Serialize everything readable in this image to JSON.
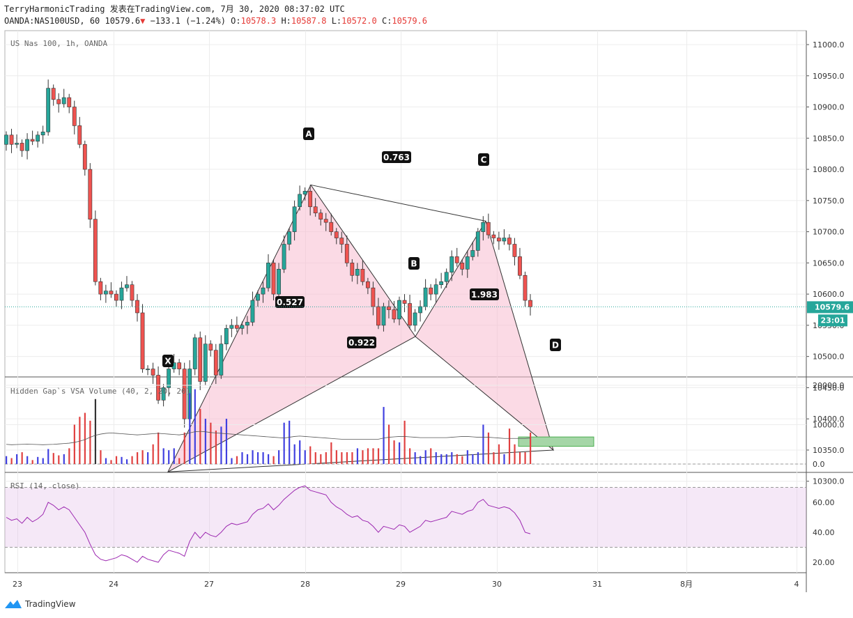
{
  "header": {
    "publish_line": "TerryHarmonicTrading 发表在TradingView.com, 7月 30, 2020 08:37:02 UTC",
    "symbol": "OANDA:NAS100USD, 60",
    "last": "10579.6",
    "change": "−133.1 (−1.24%)",
    "o_label": "O:",
    "o": "10578.3",
    "h_label": "H:",
    "h": "10587.8",
    "l_label": "L:",
    "l": "10572.0",
    "c_label": "C:",
    "c": "10579.6"
  },
  "footer": {
    "brand": "TradingView"
  },
  "colors": {
    "up": "#26a69a",
    "down": "#ef5350",
    "pattern_fill": "#f8bbd0",
    "pattern_line": "#333333",
    "target_zone": "#a5d6a7",
    "rsi_line": "#9c27b0",
    "rsi_band": "#e1bee7"
  },
  "chart_data": [
    {
      "type": "candlestick",
      "title": "US Nas 100, 1h, OANDA",
      "x_ticks": [
        "23",
        "24",
        "27",
        "28",
        "29",
        "30",
        "31",
        "8月",
        "4"
      ],
      "y_ticks": [
        "10300.0",
        "10350.0",
        "10400.0",
        "10450.0",
        "10500.0",
        "10550.0",
        "10600.0",
        "10650.0",
        "10700.0",
        "10750.0",
        "10800.0",
        "10850.0",
        "10900.0",
        "10950.0",
        "11000.0"
      ],
      "ylim": [
        10260,
        11030
      ],
      "last_price_label": "10579.6",
      "countdown_label": "23:01",
      "harmonic_pattern": {
        "points": [
          {
            "label": "X",
            "price": 10315
          },
          {
            "label": "A",
            "price": 10775
          },
          {
            "label": "B",
            "price": 10532
          },
          {
            "label": "C",
            "price": 10717
          },
          {
            "label": "D",
            "price": 10350
          }
        ],
        "ratios": [
          {
            "label": "0.763",
            "between": "A-C"
          },
          {
            "label": "0.527",
            "between": "X-B"
          },
          {
            "label": "1.983",
            "between": "B-D"
          },
          {
            "label": "0.922",
            "between": "X-D"
          }
        ],
        "target_zone": [
          10356,
          10371
        ]
      },
      "closes": [
        10855,
        10840,
        10842,
        10830,
        10848,
        10845,
        10855,
        10860,
        10930,
        10912,
        10905,
        10915,
        10900,
        10870,
        10840,
        10800,
        10720,
        10620,
        10600,
        10605,
        10600,
        10590,
        10610,
        10615,
        10590,
        10570,
        10480,
        10480,
        10470,
        10430,
        10450,
        10480,
        10490,
        10480,
        10400,
        10480,
        10530,
        10460,
        10520,
        10510,
        10470,
        10520,
        10545,
        10550,
        10545,
        10550,
        10555,
        10590,
        10600,
        10610,
        10650,
        10600,
        10640,
        10680,
        10700,
        10740,
        10760,
        10765,
        10740,
        10730,
        10720,
        10715,
        10700,
        10690,
        10680,
        10650,
        10630,
        10640,
        10620,
        10610,
        10580,
        10550,
        10580,
        10575,
        10560,
        10590,
        10585,
        10550,
        10570,
        10580,
        10610,
        10600,
        10615,
        10620,
        10635,
        10660,
        10650,
        10640,
        10660,
        10670,
        10700,
        10715,
        10695,
        10690,
        10685,
        10690,
        10680,
        10660,
        10630,
        10590,
        10579.6
      ],
      "series": []
    },
    {
      "type": "bar",
      "title": "Hidden Gap`s VSA Volume (40, 2, 20, 20)",
      "y_ticks": [
        "0.0",
        "10000.0",
        "20000.0"
      ],
      "ylim": [
        0,
        21000
      ],
      "values": [
        2000,
        1500,
        2500,
        3000,
        2000,
        1000,
        1800,
        1500,
        3800,
        2800,
        2200,
        2500,
        4000,
        10000,
        12000,
        13000,
        11000,
        16500,
        3500,
        1500,
        1000,
        2000,
        1800,
        1200,
        2000,
        3000,
        3500,
        3000,
        5000,
        8000,
        4000,
        3500,
        4000,
        1500,
        8000,
        18000,
        19000,
        14000,
        11500,
        10500,
        8500,
        9500,
        11500,
        1500,
        2000,
        3000,
        2500,
        3500,
        3000,
        3000,
        2500,
        2000,
        3500,
        10500,
        11000,
        5000,
        6000,
        3500,
        4500,
        3000,
        2500,
        3000,
        5500,
        3500,
        3000,
        3000,
        3000,
        4000,
        3500,
        4000,
        4000,
        4000,
        14500,
        10000,
        6000,
        5500,
        11000,
        4000,
        3000,
        2000,
        3500,
        4000,
        3000,
        2500,
        2500,
        3000,
        2500,
        2000,
        3500,
        2500,
        3000,
        10000,
        8000,
        3000,
        5000,
        2500,
        9000,
        5000,
        3000,
        3000,
        8000
      ],
      "series": [
        {
          "name": "",
          "values": [
            5000,
            4900,
            4950,
            5000,
            5050,
            5000,
            4950,
            4900,
            4950,
            5000,
            5100,
            5200,
            5300,
            5500,
            5800,
            6200,
            6800,
            7300,
            7600,
            7800,
            7900,
            7800,
            7700,
            7600,
            7500,
            7400,
            7500,
            7600,
            7700,
            7800,
            7700,
            7600,
            7500,
            7400,
            7600,
            7900,
            8200,
            8300,
            8200,
            8000,
            7900,
            7800,
            7700,
            7600,
            7500,
            7400,
            7300,
            7200,
            7100,
            7000,
            6900,
            6800,
            6700,
            6600,
            6800,
            7000,
            7100,
            7000,
            6900,
            6800,
            6700,
            6600,
            6500,
            6400,
            6300,
            6300,
            6300,
            6300,
            6300,
            6300,
            6300,
            6300,
            6600,
            6800,
            6900,
            7000,
            7000,
            6900,
            6800,
            6700,
            6700,
            6700,
            6700,
            6700,
            6700,
            6800,
            6900,
            7000,
            7000,
            6900,
            6800,
            6800,
            6800,
            6700,
            6600,
            6500,
            6500,
            6500,
            6500,
            6500,
            6600
          ]
        }
      ]
    },
    {
      "type": "line",
      "title": "RSI (14, close)",
      "y_ticks": [
        "20.00",
        "40.00",
        "60.00"
      ],
      "ylim": [
        15,
        75
      ],
      "band": [
        30,
        70
      ],
      "values": [
        50,
        48,
        49,
        46,
        50,
        47,
        49,
        52,
        60,
        58,
        55,
        57,
        55,
        50,
        45,
        40,
        32,
        25,
        22,
        21,
        22,
        23,
        25,
        24,
        22,
        20,
        24,
        22,
        21,
        20,
        25,
        28,
        27,
        26,
        24,
        34,
        40,
        36,
        40,
        38,
        37,
        40,
        44,
        46,
        45,
        46,
        47,
        52,
        55,
        56,
        59,
        55,
        58,
        62,
        65,
        68,
        70,
        71,
        68,
        67,
        66,
        65,
        60,
        57,
        55,
        52,
        50,
        51,
        48,
        47,
        44,
        40,
        44,
        43,
        42,
        45,
        44,
        40,
        42,
        44,
        48,
        47,
        48,
        49,
        50,
        54,
        53,
        52,
        54,
        55,
        60,
        62,
        58,
        57,
        56,
        57,
        56,
        53,
        48,
        40,
        39
      ]
    }
  ]
}
